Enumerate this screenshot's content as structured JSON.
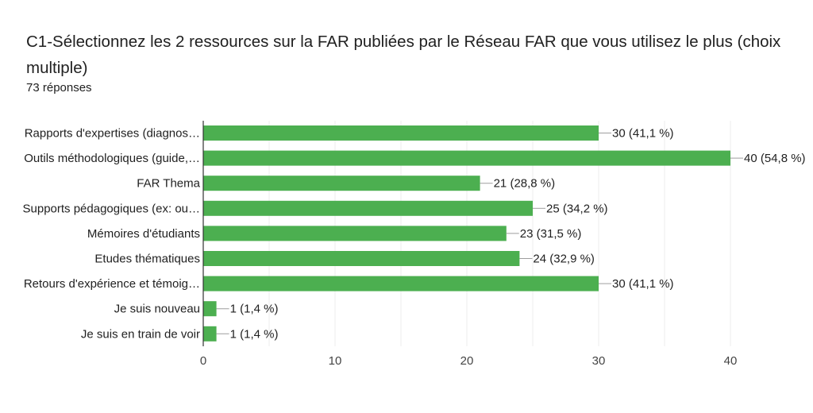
{
  "header": {
    "title": "C1-Sélectionnez les 2 ressources sur la FAR publiées par le Réseau FAR que vous utilisez le plus (choix multiple)",
    "response_count": "73 réponses"
  },
  "chart_data": {
    "type": "bar",
    "orientation": "horizontal",
    "categories": [
      "Rapports d'expertises (diagnos…",
      "Outils méthodologiques (guide,…",
      "FAR Thema",
      "Supports pédagogiques (ex: ou…",
      "Mémoires d'étudiants",
      "Etudes thématiques",
      "Retours d'expérience et témoig…",
      "Je suis nouveau",
      "Je suis en train de voir"
    ],
    "values": [
      30,
      40,
      21,
      25,
      23,
      24,
      30,
      1,
      1
    ],
    "data_labels": [
      "30 (41,1 %)",
      "40 (54,8 %)",
      "21 (28,8 %)",
      "25 (34,2 %)",
      "23 (31,5 %)",
      "24 (32,9 %)",
      "30 (41,1 %)",
      "1 (1,4 %)",
      "1 (1,4 %)"
    ],
    "xlim": [
      0,
      40
    ],
    "x_ticks": [
      0,
      10,
      20,
      30,
      40
    ],
    "grid": true,
    "bar_color": "#4caf50",
    "grid_color": "#ececec"
  }
}
